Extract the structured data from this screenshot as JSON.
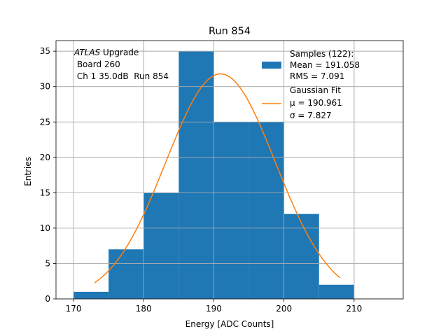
{
  "chart_data": {
    "type": "bar",
    "title": "Run 854",
    "xlabel": "Energy [ADC Counts]",
    "ylabel": "Entries",
    "xlim": [
      167.5,
      217
    ],
    "ylim": [
      0,
      36.5
    ],
    "xticks": [
      170,
      180,
      190,
      200,
      210
    ],
    "yticks": [
      0,
      5,
      10,
      15,
      20,
      25,
      30,
      35
    ],
    "grid": true,
    "bin_edges": [
      170,
      175,
      180,
      185,
      190,
      195,
      200,
      205,
      210
    ],
    "values": [
      1,
      7,
      15,
      35,
      25,
      25,
      12,
      2
    ],
    "fit": {
      "type": "gaussian",
      "amplitude": 31.8,
      "mu": 190.961,
      "sigma": 7.827,
      "x_range": [
        173,
        208
      ]
    },
    "annotation": {
      "italic": "ATLAS",
      "rest": " Upgrade",
      "line2": " Board 260",
      "line3": " Ch 1 35.0dB  Run 854"
    },
    "legend": {
      "position": "top-right",
      "entries": [
        {
          "name": "samples",
          "type": "patch",
          "lines": [
            "Samples (122):",
            "Mean = 191.058",
            "RMS = 7.091"
          ]
        },
        {
          "name": "gaussian-fit",
          "type": "line",
          "lines": [
            "Gaussian Fit",
            "μ = 190.961",
            "σ = 7.827"
          ]
        }
      ]
    },
    "colors": {
      "bars": "#1f77b4",
      "fit": "#ff7f0e",
      "grid": "#b0b0b0"
    }
  }
}
